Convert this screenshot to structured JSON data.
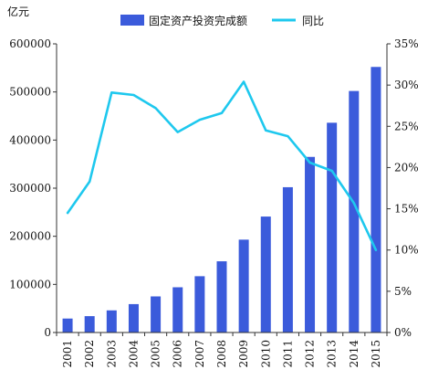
{
  "chart_data": {
    "type": "bar",
    "title": "",
    "categories": [
      "2001",
      "2002",
      "2003",
      "2004",
      "2005",
      "2006",
      "2007",
      "2008",
      "2009",
      "2010",
      "2011",
      "2012",
      "2013",
      "2014",
      "2015"
    ],
    "series": [
      {
        "name": "固定资产投资完成额",
        "type": "bar",
        "axis": "left",
        "color": "#3b5bdb",
        "values": [
          29000,
          34000,
          46000,
          59000,
          75000,
          94000,
          117000,
          148000,
          193000,
          241000,
          302000,
          365000,
          436000,
          502000,
          552000
        ]
      },
      {
        "name": "同比",
        "type": "line",
        "axis": "right",
        "color": "#1ec8ee",
        "values": [
          14.5,
          18.3,
          29.1,
          28.8,
          27.2,
          24.3,
          25.8,
          26.6,
          30.4,
          24.5,
          23.8,
          20.6,
          19.6,
          15.7,
          10.0
        ]
      }
    ],
    "y_left": {
      "unit_label": "亿元",
      "ylim": [
        0,
        600000
      ],
      "ticks": [
        "0",
        "100000",
        "200000",
        "300000",
        "400000",
        "500000",
        "600000"
      ]
    },
    "y_right": {
      "ylim": [
        0,
        35
      ],
      "ticks": [
        "0%",
        "5%",
        "10%",
        "15%",
        "20%",
        "25%",
        "30%",
        "35%"
      ]
    },
    "legend_placement": "top",
    "grid": false
  }
}
